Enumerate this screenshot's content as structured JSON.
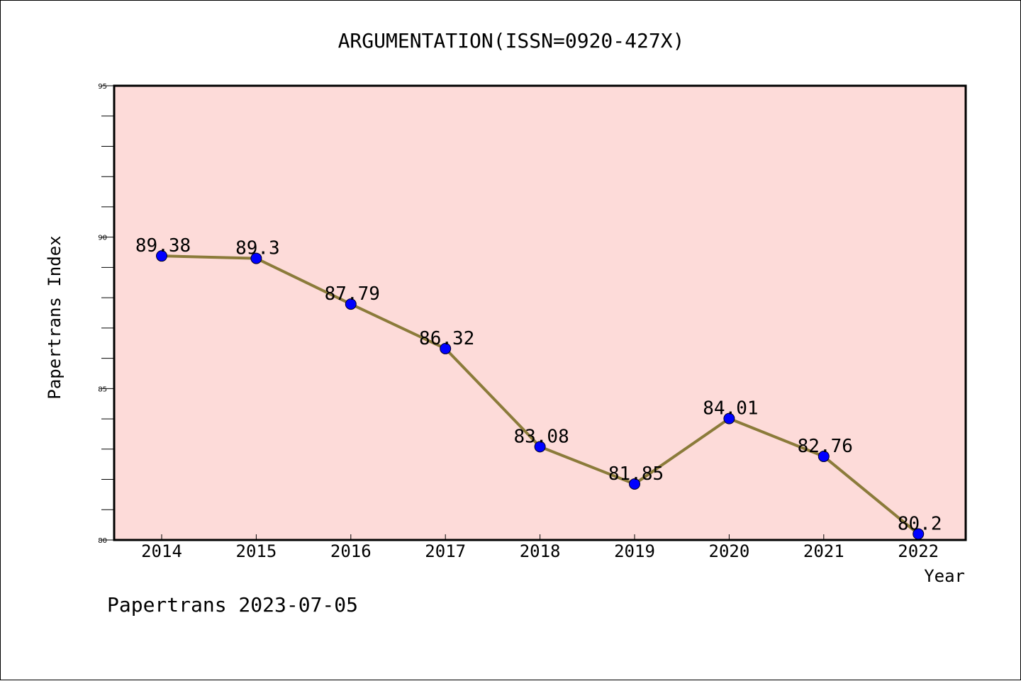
{
  "footer_text": "Papertrans 2023-07-05",
  "colors": {
    "plot_background": "#fddbd9",
    "line": "#8b7b3a",
    "marker": "#0000ff",
    "axis": "#000000"
  },
  "chart_data": {
    "type": "line",
    "title": "ARGUMENTATION(ISSN=0920-427X)",
    "xlabel": "Year",
    "ylabel": "Papertrans Index",
    "categories": [
      "2014",
      "2015",
      "2016",
      "2017",
      "2018",
      "2019",
      "2020",
      "2021",
      "2022"
    ],
    "values": [
      89.38,
      89.3,
      87.79,
      86.32,
      83.08,
      81.85,
      84.01,
      82.76,
      80.2
    ],
    "data_labels": [
      "89.38",
      "89.3",
      "87.79",
      "86.32",
      "83.08",
      "81.85",
      "84.01",
      "82.76",
      "80.2"
    ],
    "ylim": [
      80,
      95
    ],
    "y_major_ticks": [
      "80",
      "85",
      "90",
      "95"
    ],
    "y_minor_step": 1,
    "grid": false,
    "legend": "none"
  }
}
